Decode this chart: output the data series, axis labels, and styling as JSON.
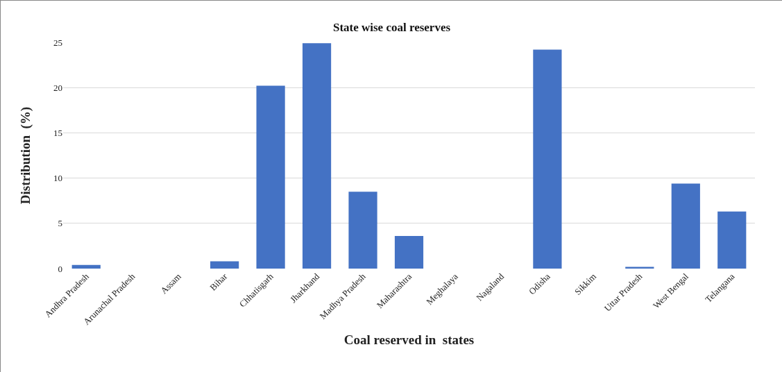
{
  "chart_data": {
    "type": "bar",
    "title": "State wise coal reserves",
    "xlabel": "Coal reserved in  states",
    "ylabel": "Distribution  (%)",
    "categories": [
      "Andhra Pradesh",
      "Arunachal Pradesh",
      "Assam",
      "Bihar",
      "Chhatisgarh",
      "Jharkhand",
      "Madhya Pradesh",
      "Maharashtra",
      "Meghalaya",
      "Nagaland",
      "Odisha",
      "Sikkim",
      "Uttar Pradesh",
      "West Bengal",
      "Telangana"
    ],
    "values": [
      0.4,
      0,
      0,
      0.8,
      20.2,
      24.9,
      8.5,
      3.6,
      0,
      0,
      24.2,
      0,
      0.2,
      9.4,
      6.3
    ],
    "color": "#4472c4",
    "ylim": [
      0,
      25
    ],
    "yticks": [
      0,
      5,
      10,
      15,
      20,
      25
    ],
    "grid": "y"
  }
}
